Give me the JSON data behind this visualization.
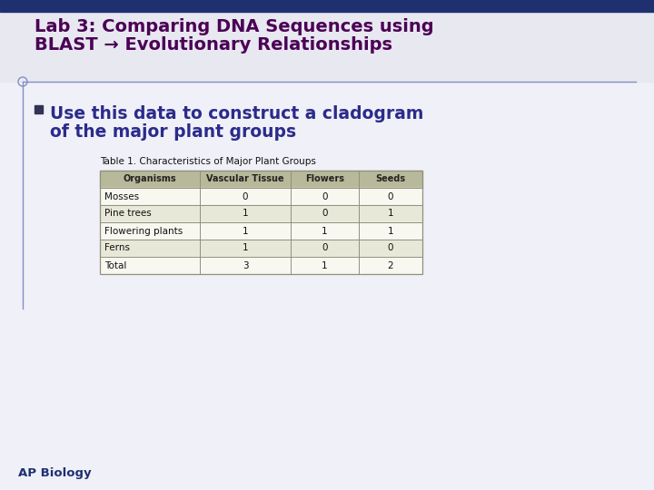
{
  "title_line1": "Lab 3: Comparing DNA Sequences using",
  "title_line2": "BLAST → Evolutionary Relationships",
  "title_color": "#4B0055",
  "bullet_text_line1": "Use this data to construct a cladogram",
  "bullet_text_line2": "of the major plant groups",
  "bullet_color": "#2B2B8B",
  "table_title": "Table 1. Characteristics of Major Plant Groups",
  "col_headers": [
    "Organisms",
    "Vascular Tissue",
    "Flowers",
    "Seeds"
  ],
  "rows": [
    [
      "Mosses",
      "0",
      "0",
      "0"
    ],
    [
      "Pine trees",
      "1",
      "0",
      "1"
    ],
    [
      "Flowering plants",
      "1",
      "1",
      "1"
    ],
    [
      "Ferns",
      "1",
      "0",
      "0"
    ],
    [
      "Total",
      "3",
      "1",
      "2"
    ]
  ],
  "header_bg": "#B8B89A",
  "table_border_color": "#909080",
  "top_bar_color": "#1E3070",
  "slide_bg": "#F0F0F8",
  "footer_text": "AP Biology",
  "footer_color": "#1E3070",
  "left_line_color": "#8090C0",
  "bullet_square_color": "#333355",
  "title_bg": "#E8E8F0"
}
